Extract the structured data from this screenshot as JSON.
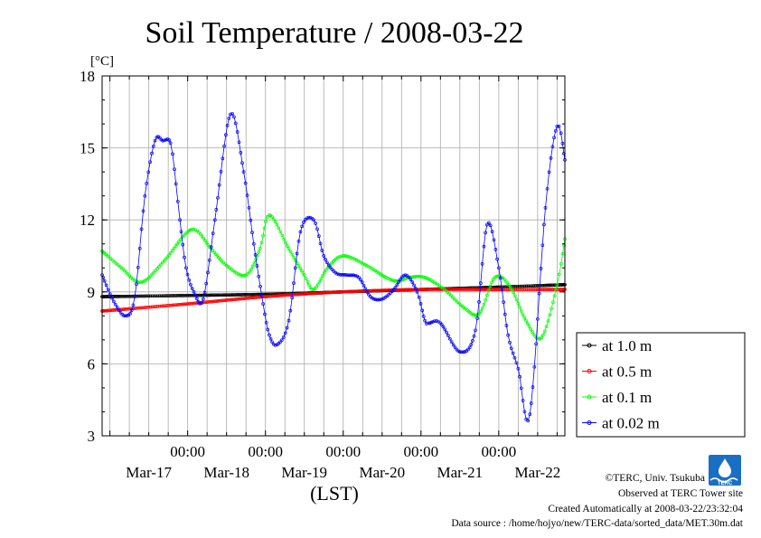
{
  "chart_data": {
    "type": "line",
    "title": "Soil Temperature / 2008-03-22",
    "ylabel": "[°C]",
    "xlabel": "(LST)",
    "ylim": [
      3,
      18
    ],
    "yticks": [
      3,
      6,
      9,
      12,
      15,
      18
    ],
    "xlim": [
      -1.1,
      4.85
    ],
    "xticks": [
      {
        "x": 0,
        "time": "00:00",
        "date": "Mar-17"
      },
      {
        "x": 1,
        "time": "00:00",
        "date": "Mar-18"
      },
      {
        "x": 2,
        "time": "00:00",
        "date": "Mar-19"
      },
      {
        "x": 3,
        "time": "00:00",
        "date": "Mar-20"
      },
      {
        "x": 4,
        "time": "00:00",
        "date": "Mar-21"
      },
      {
        "x": 5,
        "time": "00:00",
        "date": "Mar-22"
      }
    ],
    "grid": true,
    "legend_position": "right",
    "series": [
      {
        "name": "at 1.0 m",
        "color": "#000000",
        "x": [
          -1.1,
          0,
          1,
          2,
          3,
          4,
          4.85
        ],
        "y": [
          8.8,
          8.85,
          8.9,
          9.0,
          9.1,
          9.2,
          9.3
        ]
      },
      {
        "name": "at 0.5 m",
        "color": "#ff0000",
        "x": [
          -1.1,
          0,
          1,
          2,
          3,
          4,
          4.85
        ],
        "y": [
          8.2,
          8.5,
          8.8,
          9.0,
          9.1,
          9.1,
          9.1
        ]
      },
      {
        "name": "at 0.1 m",
        "color": "#00ff00",
        "x": [
          -1.1,
          -0.85,
          -0.6,
          -0.3,
          0.05,
          0.3,
          0.5,
          0.75,
          0.93,
          1.05,
          1.3,
          1.5,
          1.62,
          1.8,
          2.0,
          2.3,
          2.55,
          2.7,
          2.85,
          3.05,
          3.3,
          3.55,
          3.75,
          3.95,
          4.15,
          4.35,
          4.55,
          4.75,
          4.85
        ],
        "y": [
          10.7,
          10.0,
          9.4,
          10.3,
          11.6,
          10.8,
          10.1,
          9.7,
          10.8,
          12.2,
          10.8,
          9.7,
          9.1,
          10.0,
          10.5,
          10.1,
          9.6,
          9.45,
          9.6,
          9.6,
          9.1,
          8.35,
          8.1,
          9.6,
          9.2,
          7.8,
          7.1,
          9.3,
          11.2
        ]
      },
      {
        "name": "at 0.02 m",
        "color": "#0000ff",
        "x": [
          -1.1,
          -0.95,
          -0.8,
          -0.68,
          -0.55,
          -0.42,
          -0.32,
          -0.22,
          -0.15,
          -0.1,
          -0.02,
          0.08,
          0.2,
          0.35,
          0.55,
          0.72,
          0.85,
          0.97,
          1.05,
          1.15,
          1.3,
          1.45,
          1.62,
          1.75,
          1.9,
          2.05,
          2.2,
          2.35,
          2.5,
          2.65,
          2.8,
          2.95,
          3.05,
          3.1,
          3.25,
          3.5,
          3.7,
          3.85,
          4.0,
          4.12,
          4.25,
          4.4,
          4.6,
          4.75,
          4.85
        ],
        "y": [
          9.7,
          8.6,
          8.0,
          8.8,
          13.0,
          15.3,
          15.3,
          15.2,
          13.5,
          12.0,
          10.0,
          9.0,
          8.7,
          12.0,
          16.4,
          14.0,
          11.0,
          8.5,
          7.2,
          6.8,
          7.8,
          11.5,
          12.0,
          10.5,
          9.8,
          9.7,
          9.6,
          8.8,
          8.7,
          9.1,
          9.7,
          9.0,
          7.8,
          7.7,
          7.7,
          6.5,
          7.4,
          11.8,
          10.0,
          7.2,
          5.8,
          3.9,
          12.5,
          15.9,
          14.5
        ]
      }
    ]
  },
  "credits": {
    "copyright": "©TERC, Univ. Tsukuba",
    "observed": "Observed at TERC Tower site",
    "created": "Created Automatically at 2008-03-22/23:32:04",
    "source": "Data source : /home/hojyo/new/TERC-data/sorted_data/MET.30m.dat",
    "logo_text": "TERC"
  }
}
